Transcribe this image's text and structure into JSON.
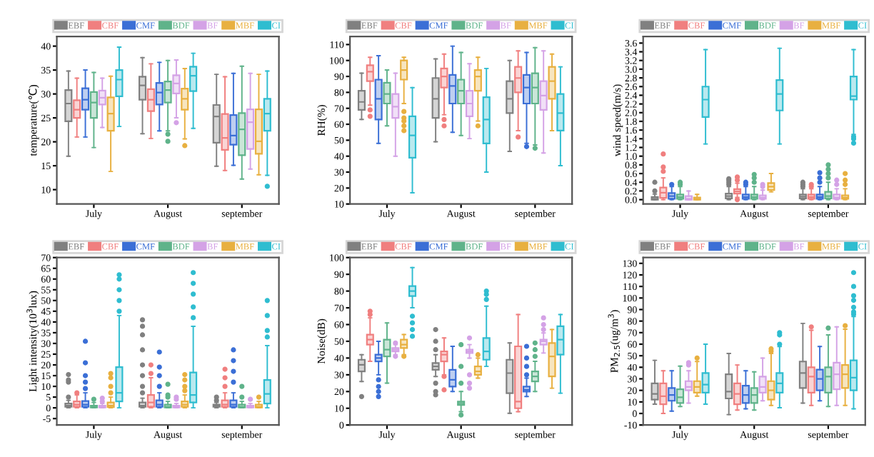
{
  "chart_data": [
    {
      "type": "box",
      "ylabel": "temperature(℃)",
      "categories": [
        "July",
        "August",
        "september"
      ],
      "ylim": [
        7,
        42
      ],
      "yticks": [
        10,
        15,
        20,
        25,
        30,
        35,
        40
      ],
      "legend": "top",
      "grid": false,
      "series": [
        {
          "name": "EBF",
          "color": "#808080",
          "boxes": [
            {
              "low": 17,
              "q1": 24.3,
              "median": 28,
              "q3": 30.8,
              "high": 34.8
            },
            {
              "low": 21.7,
              "q1": 28.8,
              "median": 31.8,
              "q3": 33.6,
              "high": 37.6
            },
            {
              "low": 14.9,
              "q1": 19.8,
              "median": 25.3,
              "q3": 27.7,
              "high": 34.1
            }
          ]
        },
        {
          "name": "CBF",
          "color": "#f07f7f",
          "boxes": [
            {
              "low": 21,
              "q1": 25,
              "median": 26.7,
              "q3": 28.7,
              "high": 33.3
            },
            {
              "low": 20.7,
              "q1": 26.4,
              "median": 28.8,
              "q3": 31,
              "high": 36.3
            },
            {
              "low": 14,
              "q1": 18.3,
              "median": 20.8,
              "q3": 25.8,
              "high": 33.6
            }
          ]
        },
        {
          "name": "CMF",
          "color": "#3b6fd6",
          "boxes": [
            {
              "low": 21,
              "q1": 26.7,
              "median": 28.8,
              "q3": 31.2,
              "high": 35
            },
            {
              "low": 22.3,
              "q1": 27.8,
              "median": 30.3,
              "q3": 32.3,
              "high": 36.6
            },
            {
              "low": 15.1,
              "q1": 19.4,
              "median": 21.3,
              "q3": 25.6,
              "high": 34.3
            }
          ]
        },
        {
          "name": "BDF",
          "color": "#5fb38a",
          "boxes": [
            {
              "low": 18.8,
              "q1": 25,
              "median": 28.2,
              "q3": 30.4,
              "high": 34.5
            },
            {
              "low": 22.3,
              "q1": 28.2,
              "median": 30.8,
              "q3": 32.6,
              "high": 37,
              "outliers": [
                21.6,
                20.1
              ]
            },
            {
              "low": 12.2,
              "q1": 17.2,
              "median": 22.6,
              "q3": 26,
              "high": 35.8
            }
          ]
        },
        {
          "name": "BF",
          "color": "#d4a2e6",
          "boxes": [
            {
              "low": 23,
              "q1": 27.8,
              "median": 29.2,
              "q3": 30.7,
              "high": 33.3
            },
            {
              "low": 25,
              "q1": 30.1,
              "median": 32.2,
              "q3": 33.9,
              "high": 37.1,
              "outliers": [
                24
              ]
            },
            {
              "low": 14.3,
              "q1": 18.5,
              "median": 24.1,
              "q3": 26.8,
              "high": 34.3
            }
          ]
        },
        {
          "name": "MBF",
          "color": "#e8b040",
          "boxes": [
            {
              "low": 13.8,
              "q1": 22.3,
              "median": 25.9,
              "q3": 29.3,
              "high": 33.7
            },
            {
              "low": 20.6,
              "q1": 26.7,
              "median": 29,
              "q3": 31.1,
              "high": 35.3,
              "outliers": [
                19.2
              ]
            },
            {
              "low": 13.1,
              "q1": 17.5,
              "median": 20.1,
              "q3": 26.8,
              "high": 34.1
            }
          ]
        },
        {
          "name": "CI",
          "color": "#2fbdd0",
          "boxes": [
            {
              "low": 23.2,
              "q1": 29.5,
              "median": 33,
              "q3": 35,
              "high": 39.8
            },
            {
              "low": 22.8,
              "q1": 30.6,
              "median": 33.8,
              "q3": 35.7,
              "high": 38.5
            },
            {
              "low": 13,
              "q1": 22.3,
              "median": 25.9,
              "q3": 29,
              "high": 34.8,
              "outliers": [
                10.7
              ]
            }
          ]
        }
      ]
    },
    {
      "type": "box",
      "ylabel": "RH(%)",
      "categories": [
        "July",
        "August",
        "september"
      ],
      "ylim": [
        10,
        115
      ],
      "yticks": [
        10,
        20,
        30,
        40,
        50,
        60,
        70,
        80,
        90,
        100,
        110
      ],
      "legend": "top",
      "grid": false,
      "series": [
        {
          "name": "EBF",
          "color": "#808080",
          "boxes": [
            {
              "low": 63,
              "q1": 69,
              "median": 74,
              "q3": 81,
              "high": 92
            },
            {
              "low": 49,
              "q1": 64,
              "median": 76,
              "q3": 89,
              "high": 101
            },
            {
              "low": 43,
              "q1": 67,
              "median": 76,
              "q3": 87,
              "high": 100
            }
          ]
        },
        {
          "name": "CBF",
          "color": "#f07f7f",
          "boxes": [
            {
              "low": 72,
              "q1": 87,
              "median": 93,
              "q3": 97,
              "high": 102,
              "outliers": [
                69,
                65
              ]
            },
            {
              "low": 66,
              "q1": 83,
              "median": 90,
              "q3": 95,
              "high": 104,
              "outliers": [
                63,
                59
              ]
            },
            {
              "low": 56,
              "q1": 80,
              "median": 89,
              "q3": 96,
              "high": 106,
              "outliers": [
                52
              ]
            }
          ]
        },
        {
          "name": "CMF",
          "color": "#3b6fd6",
          "boxes": [
            {
              "low": 48,
              "q1": 63,
              "median": 76,
              "q3": 88,
              "high": 103
            },
            {
              "low": 55,
              "q1": 73,
              "median": 84,
              "q3": 91,
              "high": 109
            },
            {
              "low": 48,
              "q1": 73,
              "median": 83,
              "q3": 91,
              "high": 105,
              "outliers": [
                46
              ]
            }
          ]
        },
        {
          "name": "BDF",
          "color": "#5fb38a",
          "boxes": [
            {
              "low": 59,
              "q1": 73,
              "median": 79,
              "q3": 86,
              "high": 94
            },
            {
              "low": 53,
              "q1": 73,
              "median": 81,
              "q3": 88,
              "high": 105
            },
            {
              "low": 47,
              "q1": 73,
              "median": 83,
              "q3": 92,
              "high": 108,
              "outliers": [
                45
              ]
            }
          ]
        },
        {
          "name": "BF",
          "color": "#d4a2e6",
          "boxes": [
            {
              "low": 40,
              "q1": 64,
              "median": 71,
              "q3": 79,
              "high": 92
            },
            {
              "low": 51,
              "q1": 65,
              "median": 73,
              "q3": 81,
              "high": 98
            },
            {
              "low": 42,
              "q1": 69,
              "median": 78,
              "q3": 87,
              "high": 106
            }
          ]
        },
        {
          "name": "MBF",
          "color": "#e8b040",
          "boxes": [
            {
              "low": 73,
              "q1": 88,
              "median": 94,
              "q3": 100,
              "high": 102,
              "outliers": [
                68,
                64,
                62,
                59,
                56
              ]
            },
            {
              "low": 62,
              "q1": 81,
              "median": 90,
              "q3": 94,
              "high": 102,
              "outliers": [
                59
              ]
            },
            {
              "low": 56,
              "q1": 76,
              "median": 87,
              "q3": 96,
              "high": 104
            }
          ]
        },
        {
          "name": "CI",
          "color": "#2fbdd0",
          "boxes": [
            {
              "low": 17,
              "q1": 39,
              "median": 53,
              "q3": 65,
              "high": 83
            },
            {
              "low": 30,
              "q1": 48,
              "median": 63,
              "q3": 77,
              "high": 95
            },
            {
              "low": 34,
              "q1": 56,
              "median": 67,
              "q3": 79,
              "high": 96
            }
          ]
        }
      ]
    },
    {
      "type": "box",
      "ylabel": "wind speed(m/s)",
      "categories": [
        "July",
        "August",
        "september"
      ],
      "ylim": [
        -0.1,
        3.75
      ],
      "yticks": [
        {
          "value": 0,
          "label": "0.0"
        },
        0.2,
        0.4,
        0.6,
        0.8,
        {
          "value": 1,
          "label": "1.0"
        },
        1.2,
        1.4,
        1.6,
        1.8,
        {
          "value": 2,
          "label": "2.0"
        },
        2.2,
        2.4,
        2.6,
        2.8,
        {
          "value": 3,
          "label": "3.0"
        },
        3.2,
        3.4,
        3.6
      ],
      "legend": "top",
      "grid": false,
      "series": [
        {
          "name": "EBF",
          "color": "#808080",
          "boxes": [
            {
              "low": 0,
              "q1": 0,
              "median": 0.02,
              "q3": 0.06,
              "high": 0.13,
              "outliers": [
                0.2,
                0.4
              ]
            },
            {
              "low": 0,
              "q1": 0.03,
              "median": 0.08,
              "q3": 0.14,
              "high": 0.3,
              "outliers": [
                0.35,
                0.4,
                0.45,
                0.48
              ]
            },
            {
              "low": 0,
              "q1": 0.03,
              "median": 0.07,
              "q3": 0.12,
              "high": 0.25,
              "outliers": [
                0.3,
                0.35,
                0.4
              ]
            }
          ]
        },
        {
          "name": "CBF",
          "color": "#f07f7f",
          "boxes": [
            {
              "low": 0,
              "q1": 0.04,
              "median": 0.16,
              "q3": 0.28,
              "high": 0.5,
              "outliers": [
                0.65,
                0.75,
                1.05
              ]
            },
            {
              "low": 0.05,
              "q1": 0.14,
              "median": 0.19,
              "q3": 0.24,
              "high": 0.38,
              "outliers": [
                0,
                0.45,
                0.52
              ]
            },
            {
              "low": 0,
              "q1": 0.02,
              "median": 0.06,
              "q3": 0.12,
              "high": 0.25,
              "outliers": [
                0.3,
                0.35
              ]
            }
          ]
        },
        {
          "name": "CMF",
          "color": "#3b6fd6",
          "boxes": [
            {
              "low": 0,
              "q1": 0.02,
              "median": 0.08,
              "q3": 0.15,
              "high": 0.3,
              "outliers": [
                0.35
              ]
            },
            {
              "low": 0,
              "q1": 0.02,
              "median": 0.06,
              "q3": 0.12,
              "high": 0.3,
              "outliers": [
                0.35,
                0.4
              ]
            },
            {
              "low": 0,
              "q1": 0.02,
              "median": 0.06,
              "q3": 0.12,
              "high": 0.3,
              "outliers": [
                0.4,
                0.5,
                0.62
              ]
            }
          ]
        },
        {
          "name": "BDF",
          "color": "#5fb38a",
          "boxes": [
            {
              "low": 0,
              "q1": 0.02,
              "median": 0.06,
              "q3": 0.12,
              "high": 0.3,
              "outliers": [
                0.35,
                0.4
              ]
            },
            {
              "low": 0,
              "q1": 0.02,
              "median": 0.06,
              "q3": 0.12,
              "high": 0.3,
              "outliers": [
                0.4,
                0.5,
                0.58
              ]
            },
            {
              "low": 0,
              "q1": 0.03,
              "median": 0.08,
              "q3": 0.18,
              "high": 0.4,
              "outliers": [
                0.5,
                0.6,
                0.7,
                0.8
              ]
            }
          ]
        },
        {
          "name": "BF",
          "color": "#d4a2e6",
          "boxes": [
            {
              "low": 0,
              "q1": 0,
              "median": 0.02,
              "q3": 0.08,
              "high": 0.2
            },
            {
              "low": 0,
              "q1": 0.02,
              "median": 0.05,
              "q3": 0.1,
              "high": 0.22,
              "outliers": [
                0.3,
                0.35
              ]
            },
            {
              "low": 0,
              "q1": 0.02,
              "median": 0.05,
              "q3": 0.12,
              "high": 0.25,
              "outliers": [
                0.35,
                0.45
              ]
            }
          ]
        },
        {
          "name": "MBF",
          "color": "#e8b040",
          "boxes": [
            {
              "low": 0,
              "q1": 0,
              "median": 0.02,
              "q3": 0.05,
              "high": 0.12
            },
            {
              "low": 0.18,
              "q1": 0.22,
              "median": 0.3,
              "q3": 0.38,
              "high": 0.6
            },
            {
              "low": 0,
              "q1": 0.02,
              "median": 0.05,
              "q3": 0.1,
              "high": 0.25,
              "outliers": [
                0.35,
                0.45,
                0.6
              ]
            }
          ]
        },
        {
          "name": "CI",
          "color": "#2fbdd0",
          "boxes": [
            {
              "low": 1.28,
              "q1": 1.9,
              "median": 2.3,
              "q3": 2.6,
              "high": 3.45
            },
            {
              "low": 1.28,
              "q1": 2.05,
              "median": 2.43,
              "q3": 2.75,
              "high": 3.48
            },
            {
              "low": 1.5,
              "q1": 2.3,
              "median": 2.38,
              "q3": 2.83,
              "high": 3.45,
              "outliers": [
                1.45,
                1.4,
                1.3
              ]
            }
          ]
        }
      ]
    },
    {
      "type": "box",
      "ylabel": "Light intensity(10$^{3}$lux)",
      "categories": [
        "July",
        "August",
        "september"
      ],
      "ylim": [
        -8,
        70
      ],
      "yticks": [
        -5,
        0,
        5,
        10,
        15,
        20,
        25,
        30,
        35,
        40,
        45,
        50,
        55,
        60,
        65,
        70
      ],
      "legend": "top",
      "grid": false,
      "series": [
        {
          "name": "EBF",
          "color": "#808080",
          "boxes": [
            {
              "low": 0,
              "q1": 0.5,
              "median": 1,
              "q3": 2,
              "high": 3.5,
              "outliers": [
                5,
                12,
                13,
                15.5
              ]
            },
            {
              "low": 0,
              "q1": 0.5,
              "median": 1,
              "q3": 2.5,
              "high": 4.5,
              "outliers": [
                7,
                10,
                15,
                20,
                27,
                34,
                38,
                41
              ]
            },
            {
              "low": 0,
              "q1": 0.5,
              "median": 1,
              "q3": 1.5,
              "high": 2.5,
              "outliers": [
                3.5,
                5
              ]
            }
          ]
        },
        {
          "name": "CBF",
          "color": "#f07f7f",
          "boxes": [
            {
              "low": 0,
              "q1": 0.5,
              "median": 1.5,
              "q3": 3,
              "high": 6,
              "outliers": [
                7
              ]
            },
            {
              "low": 0,
              "q1": 0.5,
              "median": 2.5,
              "q3": 6,
              "high": 14,
              "outliers": [
                16,
                20
              ]
            },
            {
              "low": 0,
              "q1": 0.5,
              "median": 1.5,
              "q3": 3.5,
              "high": 7,
              "outliers": [
                10,
                14,
                18
              ]
            }
          ]
        },
        {
          "name": "CMF",
          "color": "#3b6fd6",
          "boxes": [
            {
              "low": 0,
              "q1": 0.5,
              "median": 1.5,
              "q3": 3.2,
              "high": 7,
              "outliers": [
                9,
                12,
                15,
                21,
                31
              ]
            },
            {
              "low": 0,
              "q1": 0.5,
              "median": 1.5,
              "q3": 3.5,
              "high": 7,
              "outliers": [
                10,
                15,
                19,
                26
              ]
            },
            {
              "low": 0,
              "q1": 0.5,
              "median": 1.5,
              "q3": 3.5,
              "high": 7,
              "outliers": [
                12,
                17,
                22,
                27
              ]
            }
          ]
        },
        {
          "name": "BDF",
          "color": "#5fb38a",
          "boxes": [
            {
              "low": 0,
              "q1": 0.2,
              "median": 0.5,
              "q3": 1,
              "high": 2.5,
              "outliers": [
                4
              ]
            },
            {
              "low": 0,
              "q1": 0.2,
              "median": 0.5,
              "q3": 1.5,
              "high": 3,
              "outliers": [
                5,
                6,
                11
              ]
            },
            {
              "low": 0,
              "q1": 0.2,
              "median": 0.5,
              "q3": 1.5,
              "high": 3,
              "outliers": [
                5,
                10
              ]
            }
          ]
        },
        {
          "name": "BF",
          "color": "#d4a2e6",
          "boxes": [
            {
              "low": 0,
              "q1": 0.2,
              "median": 0.5,
              "q3": 1,
              "high": 2,
              "outliers": [
                3,
                4.5
              ]
            },
            {
              "low": 0,
              "q1": 0.2,
              "median": 0.5,
              "q3": 1,
              "high": 2,
              "outliers": [
                4,
                5
              ]
            },
            {
              "low": 0,
              "q1": 0.2,
              "median": 0.5,
              "q3": 1,
              "high": 2,
              "outliers": [
                4
              ]
            }
          ]
        },
        {
          "name": "MBF",
          "color": "#e8b040",
          "boxes": [
            {
              "low": 0,
              "q1": 0.3,
              "median": 1,
              "q3": 2.5,
              "high": 5,
              "outliers": [
                7,
                10,
                14,
                16
              ]
            },
            {
              "low": 0,
              "q1": 0.5,
              "median": 1.5,
              "q3": 3,
              "high": 6,
              "outliers": [
                8,
                10,
                13,
                15.5
              ]
            },
            {
              "low": 0,
              "q1": 0.2,
              "median": 0.5,
              "q3": 1.5,
              "high": 3,
              "outliers": [
                5
              ]
            }
          ]
        },
        {
          "name": "CI",
          "color": "#2fbdd0",
          "boxes": [
            {
              "low": 0,
              "q1": 3,
              "median": 7,
              "q3": 19,
              "high": 43,
              "outliers": [
                45,
                50,
                55,
                60,
                62
              ]
            },
            {
              "low": 0,
              "q1": 2.5,
              "median": 6,
              "q3": 16.5,
              "high": 38,
              "outliers": [
                42,
                47,
                53,
                58,
                63
              ]
            },
            {
              "low": 0,
              "q1": 2,
              "median": 6.5,
              "q3": 13,
              "high": 29,
              "outliers": [
                33,
                36,
                43,
                50
              ]
            }
          ]
        }
      ]
    },
    {
      "type": "box",
      "ylabel": "Noise(dB)",
      "categories": [
        "July",
        "August",
        "september"
      ],
      "ylim": [
        0,
        100
      ],
      "yticks": [
        0,
        10,
        20,
        30,
        40,
        50,
        60,
        70,
        80,
        90,
        100
      ],
      "legend": "top",
      "grid": false,
      "series": [
        {
          "name": "EBF",
          "color": "#808080",
          "boxes": [
            {
              "low": 26,
              "q1": 32,
              "median": 36,
              "q3": 39,
              "high": 42,
              "outliers": [
                17
              ]
            },
            {
              "low": 29,
              "q1": 33,
              "median": 35,
              "q3": 37,
              "high": 42,
              "outliers": [
                18,
                20,
                25,
                45,
                50,
                57
              ]
            },
            {
              "low": 7,
              "q1": 19,
              "median": 31,
              "q3": 39,
              "high": 49
            }
          ]
        },
        {
          "name": "CBF",
          "color": "#f07f7f",
          "boxes": [
            {
              "low": 38,
              "q1": 48,
              "median": 51,
              "q3": 54,
              "high": 64,
              "outliers": [
                66,
                68
              ]
            },
            {
              "low": 30,
              "q1": 38,
              "median": 42,
              "q3": 44,
              "high": 52,
              "outliers": [
                21,
                29
              ]
            },
            {
              "low": 8,
              "q1": 10,
              "median": 14,
              "q3": 47,
              "high": 66
            }
          ]
        },
        {
          "name": "CMF",
          "color": "#3b6fd6",
          "boxes": [
            {
              "low": 30,
              "q1": 38,
              "median": 40,
              "q3": 42,
              "high": 50,
              "outliers": [
                17,
                20,
                23,
                27
              ]
            },
            {
              "low": 20,
              "q1": 23,
              "median": 27,
              "q3": 33,
              "high": 47
            },
            {
              "low": 17,
              "q1": 20,
              "median": 21,
              "q3": 23,
              "high": 28,
              "outliers": [
                30,
                35,
                40,
                47
              ]
            }
          ]
        },
        {
          "name": "BDF",
          "color": "#5fb38a",
          "boxes": [
            {
              "low": 25,
              "q1": 41,
              "median": 45,
              "q3": 51,
              "high": 61
            },
            {
              "low": 8,
              "q1": 12,
              "median": 13,
              "q3": 14,
              "high": 20,
              "outliers": [
                6,
                25,
                35,
                48
              ]
            },
            {
              "low": 20,
              "q1": 26,
              "median": 29,
              "q3": 32,
              "high": 38,
              "outliers": [
                41,
                45,
                49
              ]
            }
          ]
        },
        {
          "name": "BF",
          "color": "#d4a2e6",
          "boxes": [
            {
              "low": 42,
              "q1": 44,
              "median": 45,
              "q3": 46,
              "high": 48,
              "outliers": [
                41,
                49
              ]
            },
            {
              "low": 40,
              "q1": 43,
              "median": 44,
              "q3": 45,
              "high": 48,
              "outliers": [
                22,
                25,
                30,
                52
              ]
            },
            {
              "low": 43,
              "q1": 48,
              "median": 50,
              "q3": 51,
              "high": 55,
              "outliers": [
                57,
                60,
                64
              ]
            }
          ]
        },
        {
          "name": "MBF",
          "color": "#e8b040",
          "boxes": [
            {
              "low": 42,
              "q1": 46,
              "median": 48,
              "q3": 51,
              "high": 54,
              "outliers": [
                41
              ]
            },
            {
              "low": 28,
              "q1": 30,
              "median": 32,
              "q3": 35,
              "high": 40,
              "outliers": [
                42
              ]
            },
            {
              "low": 22,
              "q1": 29,
              "median": 41,
              "q3": 49,
              "high": 57
            }
          ]
        },
        {
          "name": "CI",
          "color": "#2fbdd0",
          "boxes": [
            {
              "low": 70,
              "q1": 77,
              "median": 80,
              "q3": 83,
              "high": 94,
              "outliers": [
                53,
                57,
                61,
                65
              ]
            },
            {
              "low": 35,
              "q1": 39,
              "median": 44,
              "q3": 52,
              "high": 71,
              "outliers": [
                75,
                78,
                80
              ]
            },
            {
              "low": 19,
              "q1": 42,
              "median": 51,
              "q3": 59,
              "high": 66
            }
          ]
        }
      ]
    },
    {
      "type": "box",
      "ylabel": "PM$_{2.5}$(ug/m$^{3}$)",
      "categories": [
        "July",
        "August",
        "september"
      ],
      "ylim": [
        -10,
        135
      ],
      "yticks": [
        -10,
        0,
        10,
        20,
        30,
        40,
        50,
        60,
        70,
        80,
        90,
        100,
        110,
        120,
        130
      ],
      "legend": "top",
      "grid": false,
      "series": [
        {
          "name": "EBF",
          "color": "#808080",
          "boxes": [
            {
              "low": 8,
              "q1": 12,
              "median": 17,
              "q3": 26,
              "high": 46
            },
            {
              "low": -1,
              "q1": 13,
              "median": 19,
              "q3": 34,
              "high": 52
            },
            {
              "low": 9,
              "q1": 22,
              "median": 35,
              "q3": 45,
              "high": 78
            }
          ]
        },
        {
          "name": "CBF",
          "color": "#f07f7f",
          "boxes": [
            {
              "low": 0,
              "q1": 8,
              "median": 15,
              "q3": 26,
              "high": 37
            },
            {
              "low": 3,
              "q1": 8,
              "median": 17,
              "q3": 26,
              "high": 42
            },
            {
              "low": 7,
              "q1": 18,
              "median": 32,
              "q3": 40,
              "high": 72,
              "outliers": [
                75
              ]
            }
          ]
        },
        {
          "name": "CMF",
          "color": "#3b6fd6",
          "boxes": [
            {
              "low": 2,
              "q1": 11,
              "median": 16,
              "q3": 22,
              "high": 37
            },
            {
              "low": 4,
              "q1": 9,
              "median": 16,
              "q3": 24,
              "high": 37
            },
            {
              "low": 11,
              "q1": 20,
              "median": 30,
              "q3": 38,
              "high": 58
            }
          ]
        },
        {
          "name": "BDF",
          "color": "#5fb38a",
          "boxes": [
            {
              "low": 6,
              "q1": 9,
              "median": 14,
              "q3": 21,
              "high": 41
            },
            {
              "low": 3,
              "q1": 9,
              "median": 16,
              "q3": 22,
              "high": 36
            },
            {
              "low": 6,
              "q1": 18,
              "median": 32,
              "q3": 40,
              "high": 68,
              "outliers": [
                74
              ]
            }
          ]
        },
        {
          "name": "BF",
          "color": "#d4a2e6",
          "boxes": [
            {
              "low": 9,
              "q1": 20,
              "median": 23,
              "q3": 28,
              "high": 37,
              "outliers": [
                42,
                44
              ]
            },
            {
              "low": 11,
              "q1": 18,
              "median": 23,
              "q3": 32,
              "high": 48
            },
            {
              "low": 7,
              "q1": 21,
              "median": 34,
              "q3": 44,
              "high": 75
            }
          ]
        },
        {
          "name": "MBF",
          "color": "#e8b040",
          "boxes": [
            {
              "low": 15,
              "q1": 18,
              "median": 23,
              "q3": 28,
              "high": 45,
              "outliers": [
                48
              ]
            },
            {
              "low": 7,
              "q1": 12,
              "median": 20,
              "q3": 28,
              "high": 52,
              "outliers": [
                54,
                56
              ]
            },
            {
              "low": 7,
              "q1": 22,
              "median": 34,
              "q3": 42,
              "high": 73,
              "outliers": [
                76
              ]
            }
          ]
        },
        {
          "name": "CI",
          "color": "#2fbdd0",
          "boxes": [
            {
              "low": 8,
              "q1": 18,
              "median": 25,
              "q3": 35,
              "high": 60
            },
            {
              "low": 5,
              "q1": 18,
              "median": 26,
              "q3": 35,
              "high": 58,
              "outliers": [
                60,
                68,
                70
              ]
            },
            {
              "low": 4,
              "q1": 20,
              "median": 31,
              "q3": 46,
              "high": 84,
              "outliers": [
                86,
                88,
                92,
                98,
                102,
                110,
                122
              ]
            }
          ]
        }
      ]
    }
  ]
}
